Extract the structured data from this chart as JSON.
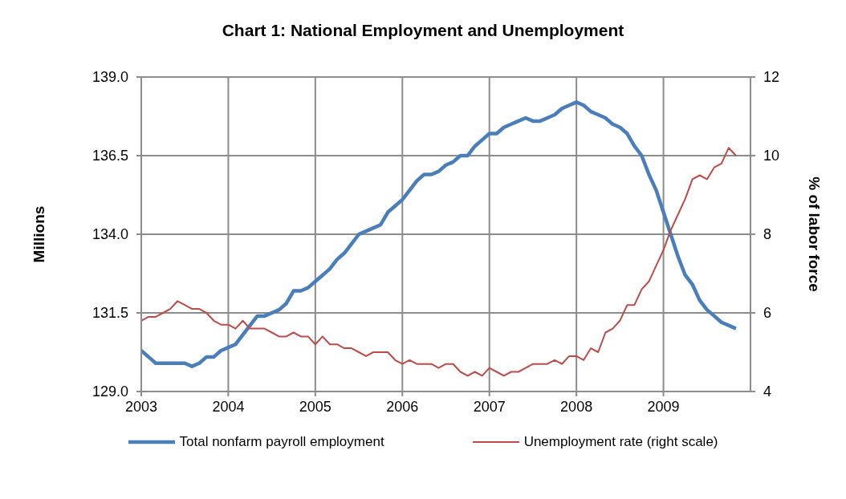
{
  "chart_data": {
    "type": "line",
    "title": "Chart 1:  National Employment and Unemployment",
    "ylabel": "Millions",
    "y2label": "% of labor force",
    "x": [
      "2003-01",
      "2003-02",
      "2003-03",
      "2003-04",
      "2003-05",
      "2003-06",
      "2003-07",
      "2003-08",
      "2003-09",
      "2003-10",
      "2003-11",
      "2003-12",
      "2004-01",
      "2004-02",
      "2004-03",
      "2004-04",
      "2004-05",
      "2004-06",
      "2004-07",
      "2004-08",
      "2004-09",
      "2004-10",
      "2004-11",
      "2004-12",
      "2005-01",
      "2005-02",
      "2005-03",
      "2005-04",
      "2005-05",
      "2005-06",
      "2005-07",
      "2005-08",
      "2005-09",
      "2005-10",
      "2005-11",
      "2005-12",
      "2006-01",
      "2006-02",
      "2006-03",
      "2006-04",
      "2006-05",
      "2006-06",
      "2006-07",
      "2006-08",
      "2006-09",
      "2006-10",
      "2006-11",
      "2006-12",
      "2007-01",
      "2007-02",
      "2007-03",
      "2007-04",
      "2007-05",
      "2007-06",
      "2007-07",
      "2007-08",
      "2007-09",
      "2007-10",
      "2007-11",
      "2007-12",
      "2008-01",
      "2008-02",
      "2008-03",
      "2008-04",
      "2008-05",
      "2008-06",
      "2008-07",
      "2008-08",
      "2008-09",
      "2008-10",
      "2008-11",
      "2008-12",
      "2009-01",
      "2009-02",
      "2009-03",
      "2009-04",
      "2009-05",
      "2009-06",
      "2009-07",
      "2009-08",
      "2009-09",
      "2009-10",
      "2009-11"
    ],
    "series": [
      {
        "name": "Total nonfarm payroll employment",
        "color": "#4a7ebb",
        "values": [
          130.3,
          130.1,
          129.9,
          129.9,
          129.9,
          129.9,
          129.9,
          129.8,
          129.9,
          130.1,
          130.1,
          130.3,
          130.4,
          130.5,
          130.8,
          131.1,
          131.4,
          131.4,
          131.5,
          131.6,
          131.8,
          132.2,
          132.2,
          132.3,
          132.5,
          132.7,
          132.9,
          133.2,
          133.4,
          133.7,
          134.0,
          134.1,
          134.2,
          134.3,
          134.7,
          134.9,
          135.1,
          135.4,
          135.7,
          135.9,
          135.9,
          136.0,
          136.2,
          136.3,
          136.5,
          136.5,
          136.8,
          137.0,
          137.2,
          137.2,
          137.4,
          137.5,
          137.6,
          137.7,
          137.6,
          137.6,
          137.7,
          137.8,
          138.0,
          138.1,
          138.2,
          138.1,
          137.9,
          137.8,
          137.7,
          137.5,
          137.4,
          137.2,
          136.8,
          136.5,
          135.9,
          135.4,
          134.7,
          134.0,
          133.3,
          132.7,
          132.4,
          131.9,
          131.6,
          131.4,
          131.2,
          131.1,
          131.0
        ]
      },
      {
        "name": "Unemployment rate (right scale)",
        "color": "#be4b48",
        "axis": "y2",
        "values": [
          5.8,
          5.9,
          5.9,
          6.0,
          6.1,
          6.3,
          6.2,
          6.1,
          6.1,
          6.0,
          5.8,
          5.7,
          5.7,
          5.6,
          5.8,
          5.6,
          5.6,
          5.6,
          5.5,
          5.4,
          5.4,
          5.5,
          5.4,
          5.4,
          5.2,
          5.4,
          5.2,
          5.2,
          5.1,
          5.1,
          5.0,
          4.9,
          5.0,
          5.0,
          5.0,
          4.8,
          4.7,
          4.8,
          4.7,
          4.7,
          4.7,
          4.6,
          4.7,
          4.7,
          4.5,
          4.4,
          4.5,
          4.4,
          4.6,
          4.5,
          4.4,
          4.5,
          4.5,
          4.6,
          4.7,
          4.7,
          4.7,
          4.8,
          4.7,
          4.9,
          4.9,
          4.8,
          5.1,
          5.0,
          5.5,
          5.6,
          5.8,
          6.2,
          6.2,
          6.6,
          6.8,
          7.2,
          7.6,
          8.1,
          8.5,
          8.9,
          9.4,
          9.5,
          9.4,
          9.7,
          9.8,
          10.2,
          10.0
        ]
      }
    ],
    "xlim": [
      "2003",
      "2010"
    ],
    "xticks": [
      "2003",
      "2004",
      "2005",
      "2006",
      "2007",
      "2008",
      "2009"
    ],
    "ylim": [
      129,
      139
    ],
    "yticks": [
      {
        "value": 129,
        "label": "129.0"
      },
      {
        "value": 131.5,
        "label": "131.5"
      },
      {
        "value": 134,
        "label": "134.0"
      },
      {
        "value": 136.5,
        "label": "136.5"
      },
      {
        "value": 139,
        "label": "139.0"
      }
    ],
    "y2lim": [
      4,
      12
    ],
    "y2ticks": [
      4,
      6,
      8,
      10,
      12
    ],
    "grid": true,
    "legend": "bottom"
  }
}
